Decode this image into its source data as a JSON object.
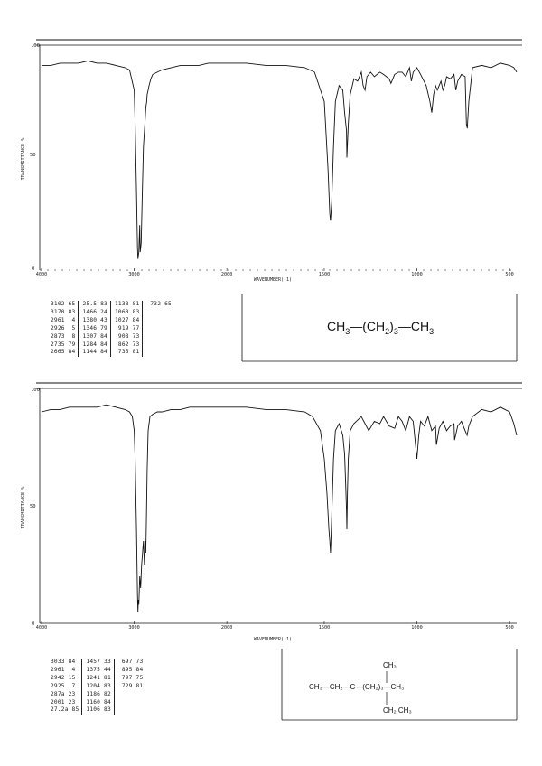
{
  "chart_data": [
    {
      "type": "line",
      "title": "",
      "xlabel": "WAVENUMBER(-1)",
      "ylabel": "TRANSMITTANCE %",
      "x_axis": "reciprocal",
      "xlim": [
        4000,
        450
      ],
      "ylim": [
        0,
        100
      ],
      "xticks": [
        "4000",
        "3000",
        "2000",
        "1500",
        "1000",
        "500"
      ],
      "yticks": [
        "0",
        "50",
        ".00"
      ],
      "series": [
        {
          "x": [
            4000,
            3900,
            3800,
            3700,
            3600,
            3500,
            3400,
            3300,
            3200,
            3100,
            3050,
            3000,
            2990,
            2975,
            2965,
            2960,
            2950,
            2940,
            2935,
            2925,
            2915,
            2900,
            2885,
            2875,
            2865,
            2860,
            2850,
            2840,
            2820,
            2800,
            2750,
            2700,
            2600,
            2500,
            2400,
            2300,
            2200,
            2100,
            2000,
            1900,
            1800,
            1700,
            1600,
            1550,
            1500,
            1480,
            1470,
            1466,
            1460,
            1450,
            1440,
            1420,
            1400,
            1390,
            1380,
            1378,
            1370,
            1360,
            1340,
            1320,
            1300,
            1290,
            1280,
            1270,
            1250,
            1230,
            1200,
            1180,
            1150,
            1140,
            1120,
            1100,
            1080,
            1060,
            1040,
            1030,
            1020,
            1000,
            980,
            950,
            930,
            920,
            910,
            900,
            890,
            870,
            860,
            850,
            840,
            820,
            800,
            790,
            780,
            760,
            740,
            733,
            728,
            720,
            700,
            650,
            600,
            550,
            500,
            470,
            450
          ],
          "y": [
            91,
            91,
            92,
            92,
            92,
            93,
            92,
            92,
            91,
            90,
            89,
            80,
            65,
            35,
            10,
            5,
            8,
            20,
            8,
            12,
            30,
            55,
            65,
            72,
            75,
            78,
            80,
            82,
            85,
            87,
            88,
            89,
            90,
            91,
            91,
            91,
            92,
            92,
            92,
            92,
            91,
            91,
            90,
            88,
            75,
            45,
            25,
            22,
            30,
            55,
            75,
            82,
            80,
            70,
            62,
            50,
            65,
            78,
            85,
            84,
            88,
            82,
            80,
            86,
            88,
            86,
            88,
            87,
            85,
            83,
            87,
            88,
            88,
            86,
            90,
            84,
            88,
            90,
            87,
            82,
            75,
            70,
            78,
            82,
            80,
            84,
            80,
            82,
            86,
            85,
            87,
            80,
            84,
            87,
            86,
            65,
            63,
            75,
            90,
            91,
            90,
            92,
            91,
            90,
            88
          ]
        }
      ]
    },
    {
      "type": "line",
      "title": "",
      "xlabel": "WAVENUMBER(-1)",
      "ylabel": "TRANSMITTANCE %",
      "x_axis": "reciprocal",
      "xlim": [
        4000,
        450
      ],
      "ylim": [
        0,
        100
      ],
      "xticks": [
        "4000",
        "3000",
        "2000",
        "1500",
        "1000",
        "500"
      ],
      "yticks": [
        "0",
        "50",
        ".00"
      ],
      "series": [
        {
          "x": [
            4000,
            3900,
            3800,
            3700,
            3600,
            3500,
            3400,
            3300,
            3200,
            3100,
            3050,
            3020,
            3000,
            2990,
            2975,
            2965,
            2960,
            2955,
            2950,
            2940,
            2930,
            2920,
            2910,
            2900,
            2890,
            2880,
            2875,
            2870,
            2860,
            2850,
            2830,
            2800,
            2750,
            2700,
            2600,
            2500,
            2400,
            2300,
            2200,
            2100,
            2000,
            1900,
            1800,
            1700,
            1600,
            1560,
            1520,
            1500,
            1485,
            1475,
            1470,
            1466,
            1460,
            1450,
            1440,
            1420,
            1400,
            1390,
            1385,
            1380,
            1378,
            1375,
            1370,
            1360,
            1340,
            1300,
            1280,
            1260,
            1230,
            1200,
            1180,
            1150,
            1120,
            1100,
            1080,
            1060,
            1040,
            1020,
            1010,
            1000,
            990,
            980,
            960,
            940,
            920,
            900,
            895,
            880,
            860,
            840,
            820,
            800,
            797,
            780,
            760,
            740,
            729,
            720,
            700,
            650,
            600,
            550,
            500,
            470,
            450
          ],
          "y": [
            90,
            91,
            91,
            92,
            92,
            92,
            92,
            93,
            92,
            91,
            90,
            88,
            82,
            70,
            40,
            12,
            5,
            10,
            8,
            20,
            15,
            25,
            30,
            35,
            25,
            35,
            30,
            40,
            65,
            82,
            88,
            89,
            90,
            90,
            91,
            91,
            92,
            92,
            92,
            92,
            92,
            92,
            91,
            91,
            90,
            88,
            82,
            70,
            55,
            40,
            35,
            30,
            45,
            70,
            82,
            85,
            80,
            72,
            60,
            48,
            40,
            55,
            70,
            82,
            85,
            88,
            85,
            82,
            86,
            85,
            88,
            84,
            83,
            88,
            86,
            82,
            88,
            86,
            78,
            70,
            80,
            86,
            84,
            88,
            82,
            84,
            76,
            83,
            86,
            82,
            84,
            85,
            78,
            84,
            86,
            82,
            80,
            84,
            88,
            91,
            90,
            92,
            90,
            85,
            80
          ]
        }
      ]
    }
  ],
  "axes": {
    "ylabel": "TRANSMITTANCE %",
    "xlabel": "WAVENUMBER(-1)",
    "xticks": [
      "4000",
      "3000",
      "2000",
      "1500",
      "1000",
      "500"
    ],
    "yticks": [
      "0",
      "50",
      ".00"
    ]
  },
  "spectrum1": {
    "peaks": [
      [
        "3102 65",
        "3170 83",
        "2961  4",
        "2926  5",
        "2873  8",
        "2735 79",
        "2665 84"
      ],
      [
        "25.5 83",
        "1466 24",
        "1380 43",
        "1346 79",
        "1307 84",
        "1284 84",
        "1144 84"
      ],
      [
        "1138 81",
        "1060 83",
        "1027 84",
        " 919 77",
        " 908 73",
        " 862 73",
        " 735 81"
      ],
      [
        " 732 65"
      ]
    ],
    "formula": {
      "p1": "CH",
      "s1": "3",
      "p2": "—(CH",
      "s2": "2",
      "p3": ")",
      "s3": "3",
      "p4": "—CH",
      "s4": "3"
    }
  },
  "spectrum2": {
    "peaks": [
      [
        "3033 84",
        "2961  4",
        "2942 15",
        "2925  7",
        "287a 23",
        "2001 23",
        "27.2a 85"
      ],
      [
        "1457 33",
        "1375 44",
        "1241 81",
        "1204 83",
        "1186 82",
        "1160 84",
        "1106 83"
      ],
      [
        " 697 73",
        " 895 84",
        " 797 75",
        " 729 81"
      ]
    ],
    "formula": {
      "top": "CH₃",
      "main": "CH₃—CH₂—C—(CH₂)₃—CH₃",
      "bottom": "CH₂   CH₃"
    }
  }
}
